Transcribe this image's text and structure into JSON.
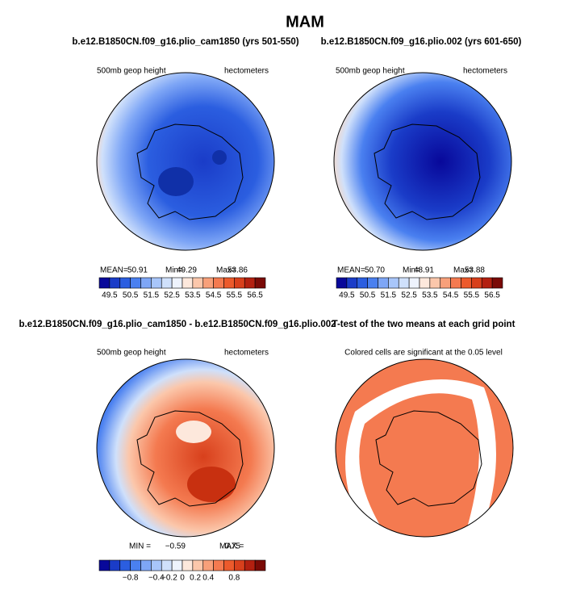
{
  "title": "MAM",
  "panels": [
    {
      "title": "b.e12.B1850CN.f09_g16.plio_cam1850 (yrs 501-550)",
      "left_label": "500mb geop height",
      "right_label": "hectometers",
      "stats": [
        "MEAN=",
        "50.91",
        "Min=",
        "49.29",
        "Max=",
        "53.86"
      ],
      "colorbar_labels": [
        "49.5",
        "50.5",
        "51.5",
        "52.5",
        "53.5",
        "54.5",
        "55.5",
        "56.5"
      ]
    },
    {
      "title": "b.e12.B1850CN.f09_g16.plio.002 (yrs 601-650)",
      "left_label": "500mb geop height",
      "right_label": "hectometers",
      "stats": [
        "MEAN=",
        "50.70",
        "Min=",
        "48.91",
        "Max=",
        "53.88"
      ],
      "colorbar_labels": [
        "49.5",
        "50.5",
        "51.5",
        "52.5",
        "53.5",
        "54.5",
        "55.5",
        "56.5"
      ]
    },
    {
      "title": "b.e12.B1850CN.f09_g16.plio_cam1850 - b.e12.B1850CN.f09_g16.plio.002",
      "left_label": "500mb geop height",
      "right_label": "hectometers",
      "stats": [
        "MIN =",
        "−0.59",
        "MAX =",
        "0.75"
      ],
      "colorbar_labels": [
        "−0.8",
        "−0.4",
        "−0.2",
        "0",
        "0.2",
        "0.4",
        "0.8"
      ]
    },
    {
      "title": "T-test of the two means at each grid point",
      "left_label": "Colored cells are significant at the 0.05 level"
    }
  ]
}
